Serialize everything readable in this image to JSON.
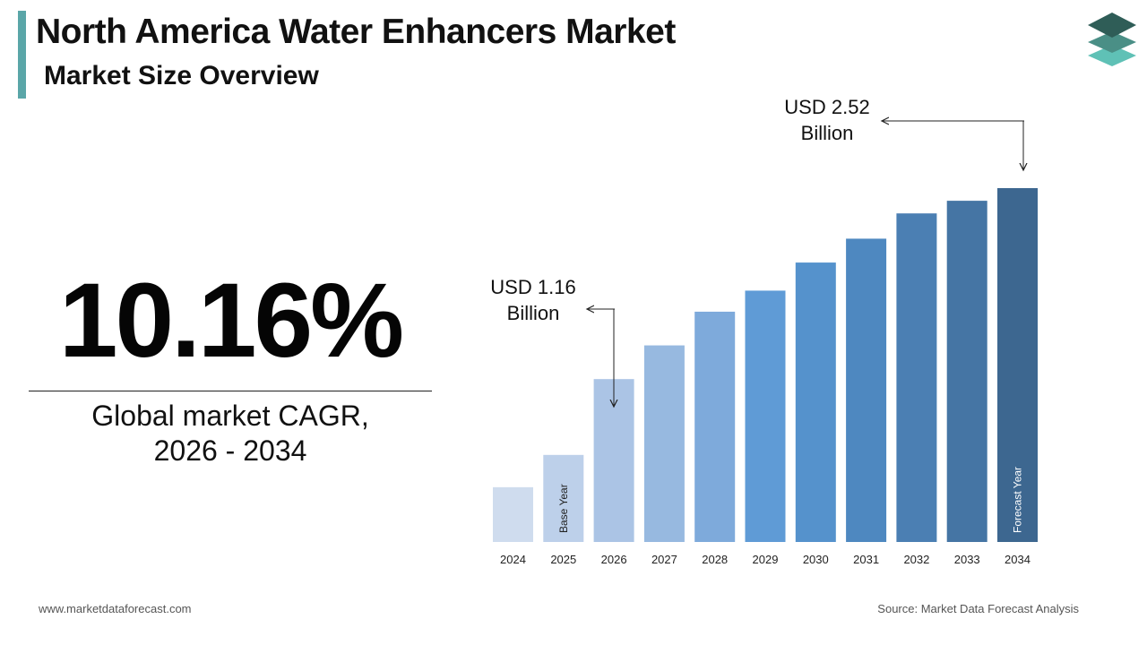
{
  "header": {
    "title": "North America Water Enhancers Market",
    "subtitle": "Market Size Overview"
  },
  "cagr": {
    "value": "10.16%",
    "label_line1": "Global market CAGR,",
    "label_line2": "2026 - 2034"
  },
  "footer": {
    "website": "www.marketdataforecast.com",
    "source": "Source: Market Data Forecast Analysis"
  },
  "logo": {
    "icon": "stacked-layers-icon",
    "colors": [
      "#2f5d57",
      "#4a8f86",
      "#5fc1b6"
    ]
  },
  "chart_data": {
    "type": "bar",
    "categories": [
      "2024",
      "2025",
      "2026",
      "2027",
      "2028",
      "2029",
      "2030",
      "2031",
      "2032",
      "2033",
      "2034"
    ],
    "values": [
      0.39,
      0.62,
      1.16,
      1.4,
      1.64,
      1.79,
      1.99,
      2.16,
      2.34,
      2.43,
      2.52
    ],
    "colors": [
      "#cfdcee",
      "#bdd0ea",
      "#abc4e5",
      "#97b9e0",
      "#7eaadb",
      "#5f9bd6",
      "#5592cc",
      "#4e88c0",
      "#4b7fb3",
      "#4575a4",
      "#3d6790"
    ],
    "bar_labels": {
      "2025": "Base Year",
      "2034": "Forecast Year"
    },
    "annotations": [
      {
        "category": "2026",
        "line1": "USD 1.16",
        "line2": "Billion"
      },
      {
        "category": "2034",
        "line1": "USD 2.52",
        "line2": "Billion"
      }
    ],
    "ylim": [
      0,
      2.52
    ],
    "grid": false,
    "legend": "none"
  }
}
